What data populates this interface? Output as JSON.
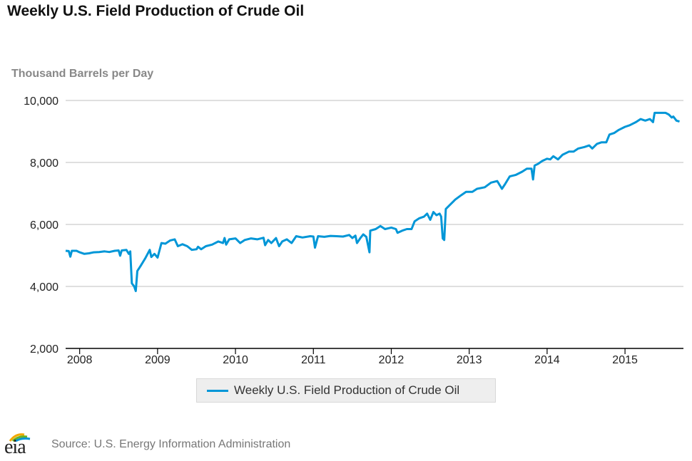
{
  "title": "Weekly U.S. Field Production of Crude Oil",
  "source": "Source: U.S. Energy Information Administration",
  "logo_text": "eia",
  "colors": {
    "series": "#0096d7",
    "grid": "#cccccc",
    "axis": "#000000"
  },
  "chart_data": {
    "type": "line",
    "title": "Weekly U.S. Field Production of Crude Oil",
    "ylabel": "Thousand Barrels per Day",
    "xlabel": "",
    "ylim": [
      2000,
      10000
    ],
    "xlim": [
      2007.82,
      2015.75
    ],
    "yticks": [
      {
        "value": 2000,
        "label": "2,000"
      },
      {
        "value": 4000,
        "label": "4,000"
      },
      {
        "value": 6000,
        "label": "6,000"
      },
      {
        "value": 8000,
        "label": "8,000"
      },
      {
        "value": 10000,
        "label": "10,000"
      }
    ],
    "xticks": [
      {
        "value": 2008,
        "label": "2008"
      },
      {
        "value": 2009,
        "label": "2009"
      },
      {
        "value": 2010,
        "label": "2010"
      },
      {
        "value": 2011,
        "label": "2011"
      },
      {
        "value": 2012,
        "label": "2012"
      },
      {
        "value": 2013,
        "label": "2013"
      },
      {
        "value": 2014,
        "label": "2014"
      },
      {
        "value": 2015,
        "label": "2015"
      }
    ],
    "grid": true,
    "legend": "bottom-center",
    "series": [
      {
        "name": "Weekly U.S. Field Production of Crude Oil",
        "color": "#0096d7",
        "points": [
          [
            2007.82,
            5150
          ],
          [
            2007.86,
            5140
          ],
          [
            2007.88,
            4960
          ],
          [
            2007.9,
            5150
          ],
          [
            2007.96,
            5150
          ],
          [
            2008.0,
            5100
          ],
          [
            2008.06,
            5050
          ],
          [
            2008.12,
            5070
          ],
          [
            2008.18,
            5100
          ],
          [
            2008.25,
            5110
          ],
          [
            2008.32,
            5130
          ],
          [
            2008.38,
            5110
          ],
          [
            2008.45,
            5150
          ],
          [
            2008.5,
            5160
          ],
          [
            2008.52,
            4990
          ],
          [
            2008.54,
            5160
          ],
          [
            2008.6,
            5180
          ],
          [
            2008.63,
            5050
          ],
          [
            2008.65,
            5130
          ],
          [
            2008.67,
            4100
          ],
          [
            2008.7,
            4000
          ],
          [
            2008.72,
            3850
          ],
          [
            2008.74,
            4500
          ],
          [
            2008.78,
            4650
          ],
          [
            2008.84,
            4900
          ],
          [
            2008.9,
            5180
          ],
          [
            2008.92,
            4950
          ],
          [
            2008.96,
            5050
          ],
          [
            2009.0,
            4930
          ],
          [
            2009.05,
            5400
          ],
          [
            2009.1,
            5380
          ],
          [
            2009.16,
            5480
          ],
          [
            2009.22,
            5520
          ],
          [
            2009.26,
            5300
          ],
          [
            2009.32,
            5360
          ],
          [
            2009.38,
            5300
          ],
          [
            2009.44,
            5180
          ],
          [
            2009.5,
            5200
          ],
          [
            2009.52,
            5280
          ],
          [
            2009.56,
            5200
          ],
          [
            2009.62,
            5300
          ],
          [
            2009.7,
            5350
          ],
          [
            2009.78,
            5450
          ],
          [
            2009.84,
            5400
          ],
          [
            2009.86,
            5560
          ],
          [
            2009.88,
            5350
          ],
          [
            2009.92,
            5520
          ],
          [
            2010.0,
            5550
          ],
          [
            2010.06,
            5400
          ],
          [
            2010.12,
            5500
          ],
          [
            2010.2,
            5550
          ],
          [
            2010.28,
            5520
          ],
          [
            2010.36,
            5570
          ],
          [
            2010.38,
            5330
          ],
          [
            2010.42,
            5500
          ],
          [
            2010.46,
            5400
          ],
          [
            2010.52,
            5560
          ],
          [
            2010.56,
            5300
          ],
          [
            2010.6,
            5450
          ],
          [
            2010.66,
            5520
          ],
          [
            2010.72,
            5400
          ],
          [
            2010.78,
            5620
          ],
          [
            2010.86,
            5580
          ],
          [
            2010.96,
            5620
          ],
          [
            2011.0,
            5610
          ],
          [
            2011.02,
            5250
          ],
          [
            2011.06,
            5620
          ],
          [
            2011.14,
            5600
          ],
          [
            2011.22,
            5630
          ],
          [
            2011.3,
            5620
          ],
          [
            2011.38,
            5610
          ],
          [
            2011.46,
            5660
          ],
          [
            2011.5,
            5560
          ],
          [
            2011.54,
            5640
          ],
          [
            2011.56,
            5400
          ],
          [
            2011.6,
            5550
          ],
          [
            2011.64,
            5680
          ],
          [
            2011.68,
            5600
          ],
          [
            2011.72,
            5100
          ],
          [
            2011.73,
            5800
          ],
          [
            2011.8,
            5850
          ],
          [
            2011.86,
            5950
          ],
          [
            2011.92,
            5850
          ],
          [
            2012.0,
            5900
          ],
          [
            2012.06,
            5850
          ],
          [
            2012.08,
            5730
          ],
          [
            2012.14,
            5800
          ],
          [
            2012.2,
            5850
          ],
          [
            2012.26,
            5850
          ],
          [
            2012.3,
            6100
          ],
          [
            2012.36,
            6200
          ],
          [
            2012.42,
            6250
          ],
          [
            2012.46,
            6350
          ],
          [
            2012.5,
            6150
          ],
          [
            2012.54,
            6400
          ],
          [
            2012.58,
            6300
          ],
          [
            2012.62,
            6350
          ],
          [
            2012.64,
            6250
          ],
          [
            2012.66,
            5550
          ],
          [
            2012.68,
            5500
          ],
          [
            2012.7,
            6500
          ],
          [
            2012.76,
            6650
          ],
          [
            2012.82,
            6800
          ],
          [
            2012.9,
            6950
          ],
          [
            2012.96,
            7050
          ],
          [
            2013.04,
            7050
          ],
          [
            2013.1,
            7150
          ],
          [
            2013.2,
            7200
          ],
          [
            2013.28,
            7350
          ],
          [
            2013.36,
            7400
          ],
          [
            2013.42,
            7150
          ],
          [
            2013.46,
            7300
          ],
          [
            2013.52,
            7550
          ],
          [
            2013.6,
            7600
          ],
          [
            2013.68,
            7700
          ],
          [
            2013.74,
            7800
          ],
          [
            2013.8,
            7800
          ],
          [
            2013.82,
            7450
          ],
          [
            2013.84,
            7900
          ],
          [
            2013.88,
            7950
          ],
          [
            2013.94,
            8050
          ],
          [
            2014.0,
            8120
          ],
          [
            2014.04,
            8100
          ],
          [
            2014.08,
            8200
          ],
          [
            2014.14,
            8100
          ],
          [
            2014.2,
            8250
          ],
          [
            2014.28,
            8350
          ],
          [
            2014.34,
            8350
          ],
          [
            2014.4,
            8450
          ],
          [
            2014.48,
            8500
          ],
          [
            2014.54,
            8550
          ],
          [
            2014.58,
            8450
          ],
          [
            2014.64,
            8600
          ],
          [
            2014.7,
            8650
          ],
          [
            2014.76,
            8650
          ],
          [
            2014.8,
            8900
          ],
          [
            2014.86,
            8950
          ],
          [
            2014.92,
            9050
          ],
          [
            2015.0,
            9150
          ],
          [
            2015.06,
            9200
          ],
          [
            2015.14,
            9300
          ],
          [
            2015.2,
            9400
          ],
          [
            2015.26,
            9350
          ],
          [
            2015.32,
            9400
          ],
          [
            2015.36,
            9300
          ],
          [
            2015.38,
            9600
          ],
          [
            2015.46,
            9600
          ],
          [
            2015.52,
            9600
          ],
          [
            2015.56,
            9550
          ],
          [
            2015.6,
            9450
          ],
          [
            2015.62,
            9480
          ],
          [
            2015.66,
            9350
          ],
          [
            2015.7,
            9320
          ]
        ]
      }
    ]
  }
}
